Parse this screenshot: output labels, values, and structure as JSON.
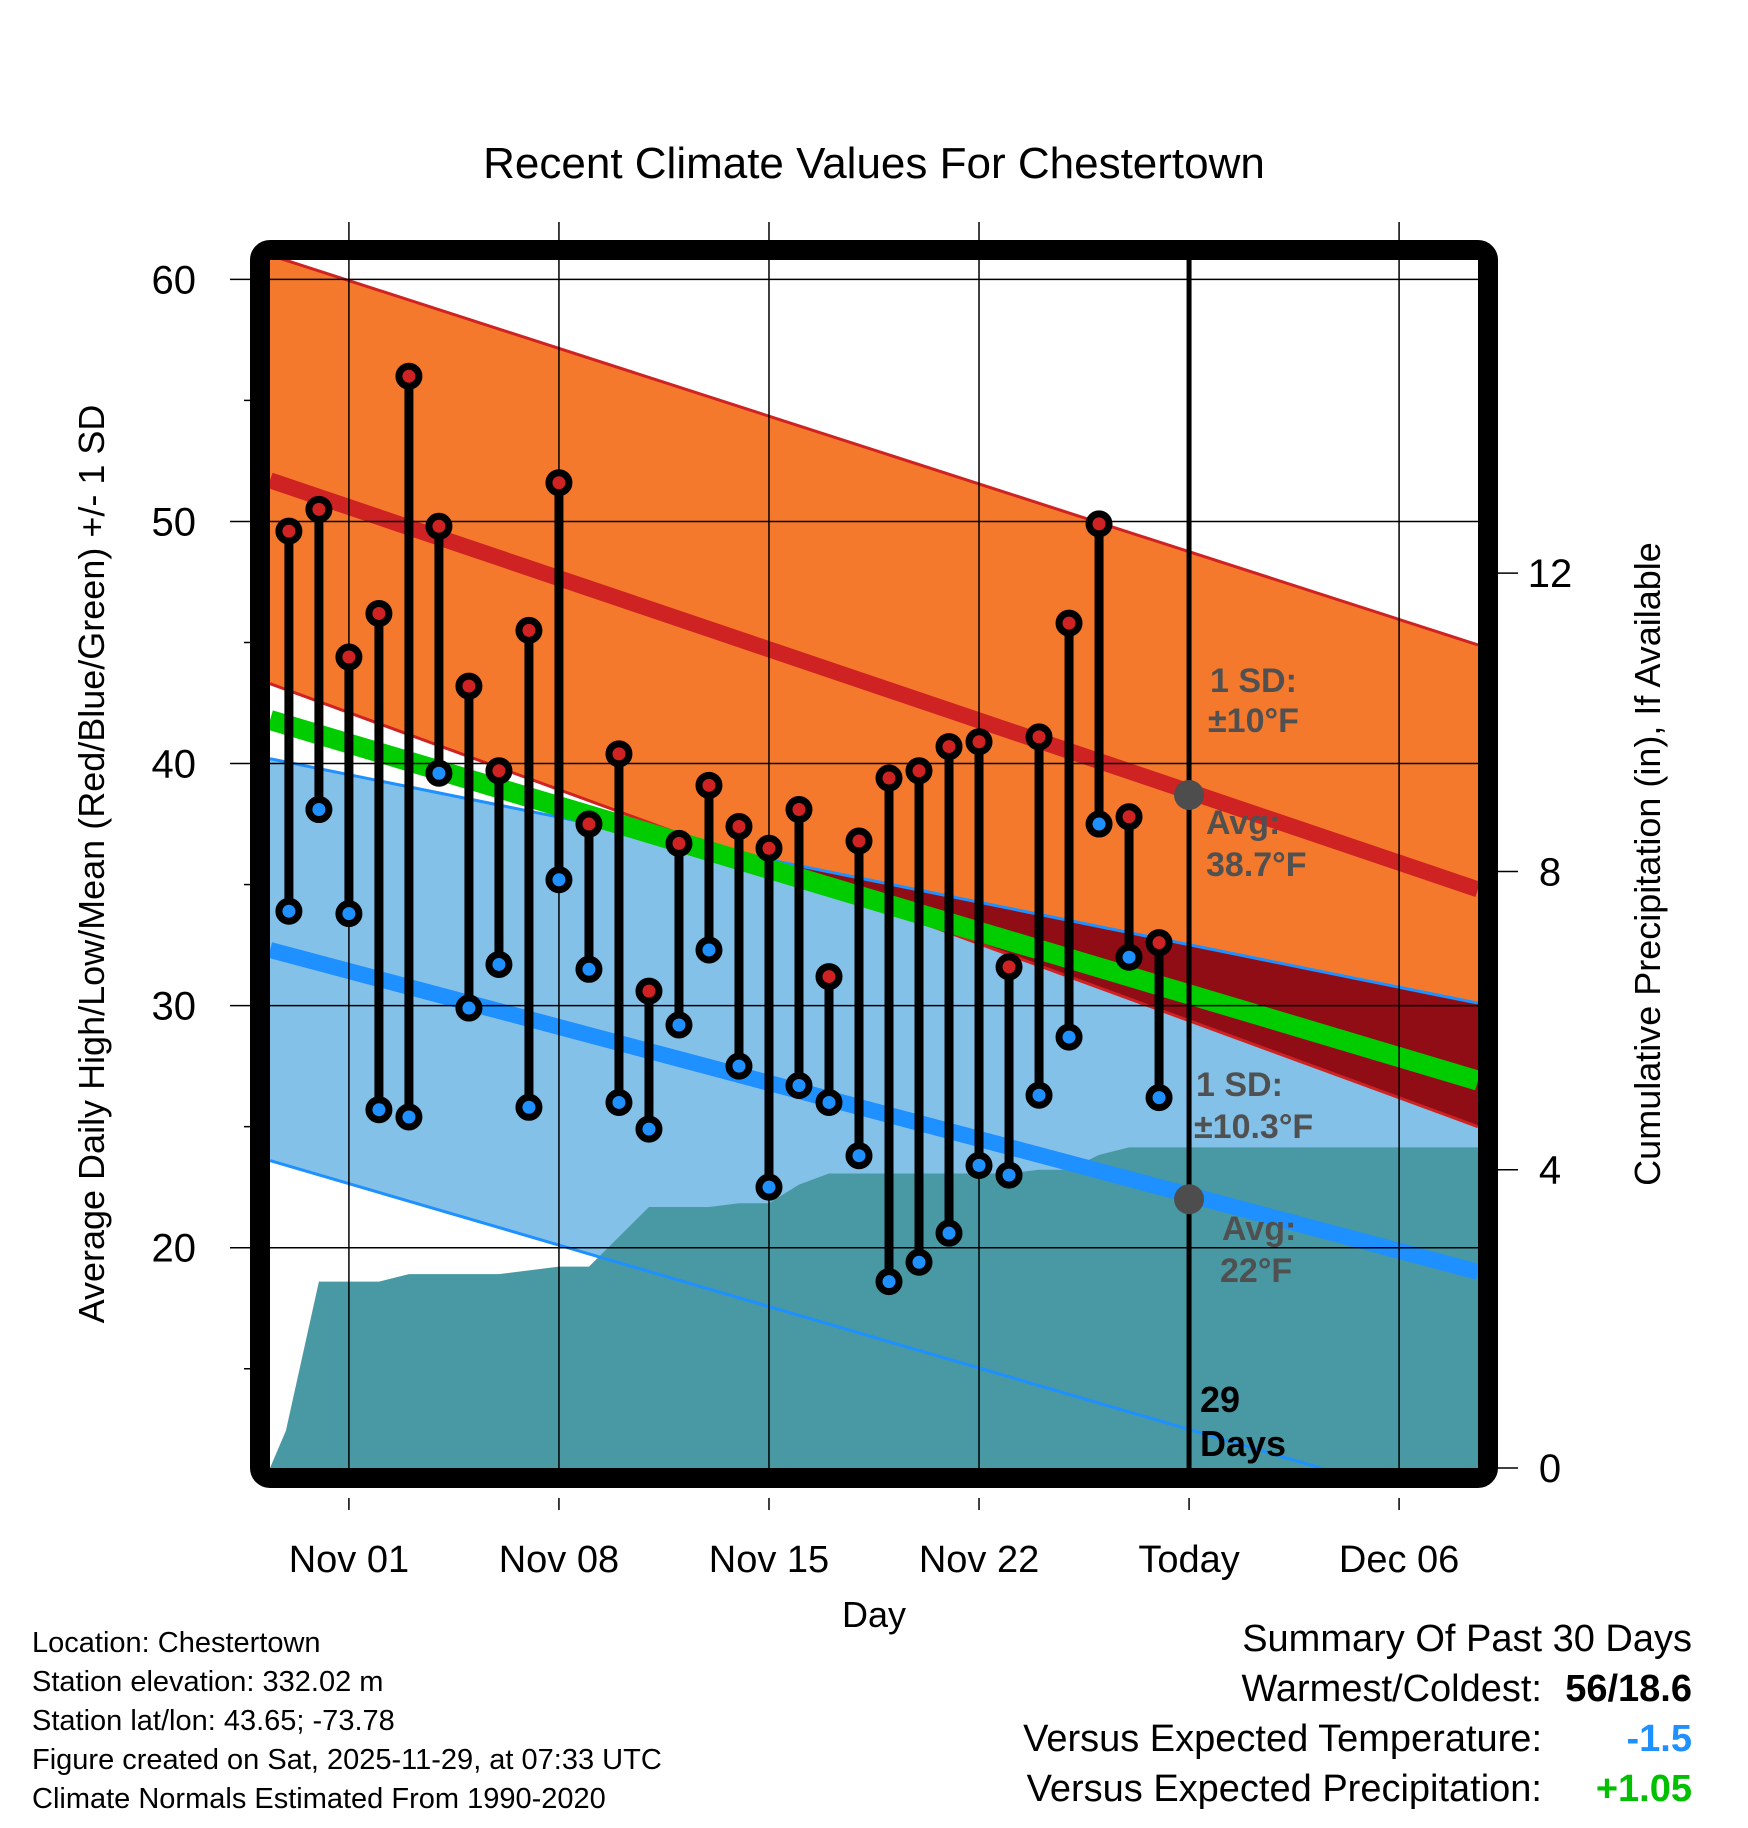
{
  "chart_data": {
    "type": "line",
    "title": "Recent Climate Values For Chestertown",
    "xlabel": "Day",
    "ylabel": "Average Daily High/Low/Mean (Red/Blue/Green) +/- 1 SD",
    "y2label": "Cumulative Precipitation (in), If Available",
    "ylim": [
      10.9,
      60.8
    ],
    "y2lim": [
      0,
      16.2
    ],
    "x_range_days_from_nov01": [
      -2.63,
      37.63
    ],
    "grid": true,
    "yticks": [
      20,
      30,
      40,
      50,
      60
    ],
    "y2ticks": [
      0,
      4,
      8,
      12
    ],
    "xticks": [
      {
        "label": "Nov 01",
        "day": 0
      },
      {
        "label": "Nov 08",
        "day": 7
      },
      {
        "label": "Nov 15",
        "day": 14
      },
      {
        "label": "Nov 22",
        "day": 21
      },
      {
        "label": "Today",
        "day": 28
      },
      {
        "label": "Dec 06",
        "day": 35
      }
    ],
    "days": [
      "Oct 30",
      "Oct 31",
      "Nov 01",
      "Nov 02",
      "Nov 03",
      "Nov 04",
      "Nov 05",
      "Nov 06",
      "Nov 07",
      "Nov 08",
      "Nov 09",
      "Nov 10",
      "Nov 11",
      "Nov 12",
      "Nov 13",
      "Nov 14",
      "Nov 15",
      "Nov 16",
      "Nov 17",
      "Nov 18",
      "Nov 19",
      "Nov 20",
      "Nov 21",
      "Nov 22",
      "Nov 23",
      "Nov 24",
      "Nov 25",
      "Nov 26",
      "Nov 27",
      "Nov 28"
    ],
    "day_offsets": [
      -2,
      -1,
      0,
      1,
      2,
      3,
      4,
      5,
      6,
      7,
      8,
      9,
      10,
      11,
      12,
      13,
      14,
      15,
      16,
      17,
      18,
      19,
      20,
      21,
      22,
      23,
      24,
      25,
      26,
      27
    ],
    "series": [
      {
        "name": "Daily High",
        "values": [
          49.6,
          50.5,
          44.4,
          46.2,
          56.0,
          49.8,
          43.2,
          39.7,
          45.5,
          51.6,
          37.5,
          40.4,
          30.6,
          36.7,
          39.1,
          37.4,
          36.5,
          38.1,
          31.2,
          36.8,
          39.4,
          39.7,
          40.7,
          40.9,
          31.6,
          41.1,
          45.8,
          49.9,
          37.8,
          32.6
        ]
      },
      {
        "name": "Daily Low",
        "values": [
          33.9,
          38.1,
          33.8,
          25.7,
          25.4,
          39.6,
          29.9,
          31.7,
          25.8,
          35.2,
          31.5,
          26.0,
          24.9,
          29.2,
          32.3,
          27.5,
          22.5,
          26.7,
          26.0,
          23.8,
          18.6,
          19.4,
          20.6,
          23.4,
          23.0,
          26.3,
          28.7,
          37.5,
          32.0,
          26.2
        ]
      }
    ],
    "precip_cumulative": {
      "day_offsets": [
        -2.63,
        -2.1,
        -1.0,
        0.0,
        1.0,
        2.0,
        3.0,
        5.0,
        6.0,
        7.0,
        8.0,
        9.0,
        10.0,
        12.0,
        13.0,
        14.0,
        15.0,
        16.0,
        17.0,
        18.0,
        19.0,
        20.0,
        21.0,
        22.0,
        23.0,
        24.0,
        25.0,
        26.0,
        27.0,
        37.63
      ],
      "values": [
        0.0,
        0.5,
        2.5,
        2.5,
        2.5,
        2.6,
        2.6,
        2.6,
        2.65,
        2.7,
        2.7,
        3.1,
        3.5,
        3.5,
        3.55,
        3.55,
        3.8,
        3.95,
        3.95,
        3.95,
        3.95,
        3.95,
        3.95,
        3.95,
        4.0,
        4.0,
        4.2,
        4.3,
        4.3,
        4.3
      ]
    },
    "normals": {
      "avg_high": {
        "start": 51.7,
        "end": 34.8
      },
      "high_plus_1sd": {
        "start": 61.0,
        "end": 44.9
      },
      "high_minus_1sd": {
        "start": 43.3,
        "end": 25.0
      },
      "avg_mean": {
        "start": 41.8,
        "end": 26.9
      },
      "avg_low": {
        "start": 32.3,
        "end": 19.0
      },
      "low_plus_1sd": {
        "start": 40.2,
        "end": 30.1
      },
      "low_minus_1sd": {
        "start": 23.6,
        "end": 9.0
      }
    },
    "today_markers": {
      "avg_high": 38.7,
      "avg_low": 22.0,
      "day": 28
    },
    "annotations": {
      "high_sd_line1": "1 SD:",
      "high_sd_line2": "±10°F",
      "high_avg_line1": "Avg:",
      "high_avg_line2": "38.7°F",
      "low_sd_line1": "1 SD:",
      "low_sd_line2": "±10.3°F",
      "low_avg_line1": "Avg:",
      "low_avg_line2": "22°F",
      "days_line1": "29",
      "days_line2": "Days"
    },
    "colors": {
      "high_band": "#f5792d",
      "high_line": "#cf2222",
      "low_band": "#84c1e8",
      "low_line": "#1e90ff",
      "overlap_band": "#910d15",
      "mean_line": "#00cc00",
      "precip": "#4899a3",
      "high_dot": "#cf2222",
      "low_dot": "#1e90ff",
      "marker": "#4d4d4d",
      "annotation_text": "#505050"
    }
  },
  "footer": {
    "location": "Location: Chestertown",
    "elevation": "Station elevation: 332.02 m",
    "latlon": "Station lat/lon: 43.65; -73.78",
    "created": "Figure created on Sat, 2025-11-29, at 07:33 UTC",
    "normals": "Climate Normals Estimated From 1990-2020"
  },
  "summary": {
    "title": "Summary Of Past 30 Days",
    "warm_cold_label": "Warmest/Coldest:",
    "warm_cold_value": "56/18.6",
    "temp_label": "Versus Expected Temperature:",
    "temp_value": "-1.5",
    "precip_label": "Versus Expected Precipitation:",
    "precip_value": "+1.05"
  }
}
